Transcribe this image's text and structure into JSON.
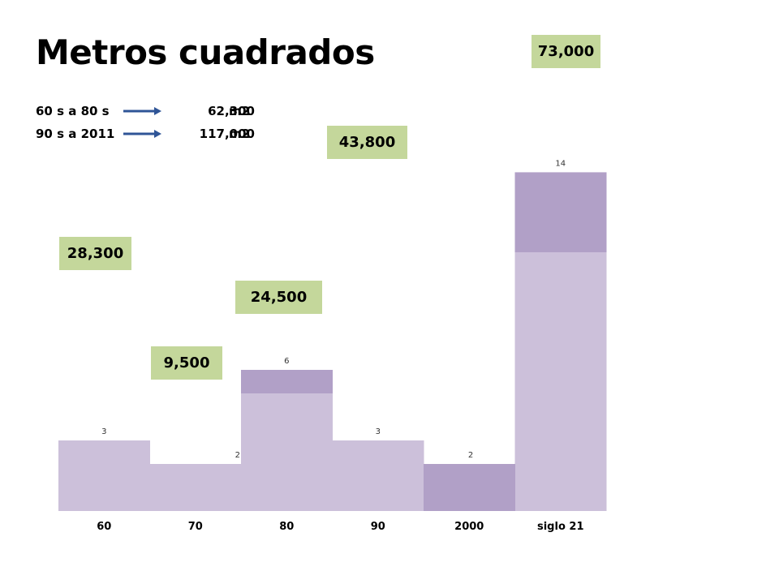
{
  "title": "Metros cuadrados",
  "summary": [
    {
      "label": "60 s a 80 s",
      "value": "62,300",
      "unit": "m2"
    },
    {
      "label": "90 s a 2011",
      "value": "117,000",
      "unit": "m2"
    }
  ],
  "callouts": [
    "28,300",
    "9,500",
    "24,500",
    "43,800",
    "73,000"
  ],
  "colors": {
    "base": "#ccc0da",
    "top": "#b1a0c7",
    "callout": "#c4d79b",
    "arrow": "#2f5597"
  },
  "chart_data": {
    "type": "bar",
    "stacked": true,
    "categories": [
      "60",
      "70",
      "80",
      "90",
      "2000",
      "siglo 21"
    ],
    "series": [
      {
        "values": [
          3,
          2,
          5,
          3,
          0,
          11
        ]
      },
      {
        "values": [
          0,
          0,
          1,
          0,
          2,
          3.4
        ]
      }
    ],
    "data_labels": [
      "3",
      "2",
      "6",
      "3",
      "2",
      "14"
    ],
    "ylim": [
      0,
      15
    ],
    "grid": false
  }
}
